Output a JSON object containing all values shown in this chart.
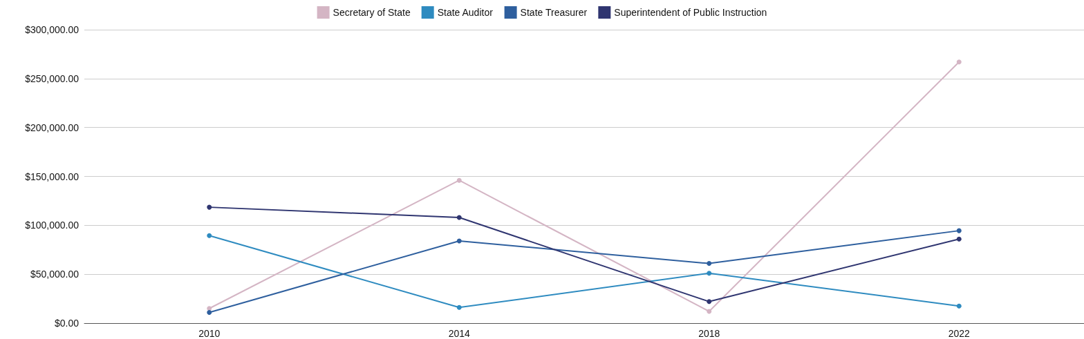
{
  "chart_data": {
    "type": "line",
    "categories": [
      "2010",
      "2014",
      "2018",
      "2022"
    ],
    "series": [
      {
        "name": "Secretary of State",
        "color": "#d4b5c4",
        "values": [
          15000,
          146000,
          12000,
          267000
        ]
      },
      {
        "name": "State Auditor",
        "color": "#2e8bc0",
        "values": [
          89500,
          16000,
          51000,
          17500
        ]
      },
      {
        "name": "State Treasurer",
        "color": "#2e5f9e",
        "values": [
          11000,
          84000,
          61000,
          94500
        ]
      },
      {
        "name": "Superintendent of Public Instruction",
        "color": "#2f3570",
        "values": [
          118500,
          108000,
          22000,
          86000
        ]
      }
    ],
    "ylim": [
      0,
      300000
    ],
    "yticks": [
      {
        "value": 0,
        "label": "$0.00"
      },
      {
        "value": 50000,
        "label": "$50,000.00"
      },
      {
        "value": 100000,
        "label": "$100,000.00"
      },
      {
        "value": 150000,
        "label": "$150,000.00"
      },
      {
        "value": 200000,
        "label": "$200,000.00"
      },
      {
        "value": 250000,
        "label": "$250,000.00"
      },
      {
        "value": 300000,
        "label": "$300,000.00"
      }
    ],
    "grid": "y",
    "legend": "top",
    "marker": "circle",
    "line_style": "solid"
  }
}
